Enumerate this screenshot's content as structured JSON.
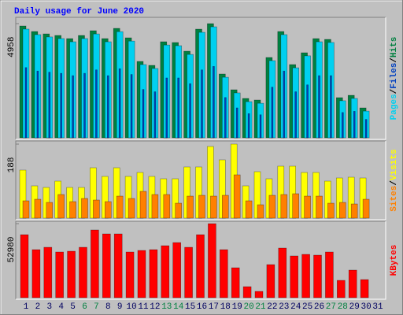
{
  "chart_data": [
    {
      "type": "bar",
      "title": "Daily usage for June 2020",
      "legend_separator": "/",
      "ylim": [
        0,
        4958
      ],
      "yticks": [
        4958
      ],
      "series": [
        {
          "name": "Hits",
          "color": "#008040",
          "values": [
            4855,
            4616,
            4513,
            4445,
            4308,
            4445,
            4650,
            4308,
            4753,
            4342,
            3317,
            3146,
            4171,
            4137,
            3761,
            4718,
            4958,
            2770,
            2086,
            1710,
            1641,
            3488,
            4616,
            3180,
            3693,
            4308,
            4274,
            1744,
            1846,
            1299,
            null
          ]
        },
        {
          "name": "Files",
          "color": "#0040c0",
          "values": [
            3050,
            2900,
            2850,
            2800,
            2700,
            2800,
            2950,
            2700,
            3000,
            2750,
            2100,
            2000,
            2600,
            2600,
            2350,
            2950,
            3100,
            1750,
            1300,
            1050,
            1000,
            2200,
            2900,
            2000,
            2300,
            2700,
            2700,
            1100,
            1150,
            800,
            null
          ]
        },
        {
          "name": "Pages",
          "color": "#00d0f0",
          "values": [
            4720,
            4480,
            4380,
            4310,
            4170,
            4310,
            4510,
            4170,
            4610,
            4200,
            3180,
            3010,
            4030,
            4000,
            3620,
            4580,
            4820,
            2630,
            1950,
            1570,
            1500,
            3350,
            4480,
            3040,
            3560,
            4170,
            4140,
            1610,
            1710,
            1160,
            null
          ]
        }
      ]
    },
    {
      "type": "bar",
      "legend_separator": "/",
      "ylim": [
        0,
        188
      ],
      "yticks": [
        188
      ],
      "series": [
        {
          "name": "Visits",
          "color": "#ffff00",
          "values": [
            122,
            82,
            78,
            94,
            78,
            78,
            128,
            106,
            128,
            106,
            116,
            106,
            100,
            100,
            130,
            130,
            182,
            148,
            188,
            82,
            118,
            100,
            132,
            132,
            116,
            116,
            94,
            102,
            104,
            102,
            null
          ]
        },
        {
          "name": "Sites",
          "color": "#ff8000",
          "values": [
            44,
            48,
            40,
            60,
            42,
            50,
            46,
            42,
            56,
            50,
            68,
            60,
            60,
            38,
            56,
            58,
            56,
            58,
            110,
            44,
            34,
            58,
            60,
            62,
            56,
            56,
            38,
            40,
            36,
            48,
            null
          ]
        }
      ]
    },
    {
      "type": "bar",
      "ylim": [
        0,
        52980
      ],
      "yticks": [
        52980
      ],
      "categories": [
        1,
        2,
        3,
        4,
        5,
        6,
        7,
        8,
        9,
        10,
        11,
        12,
        13,
        14,
        15,
        16,
        17,
        18,
        19,
        20,
        21,
        22,
        23,
        24,
        25,
        26,
        27,
        28,
        29,
        30,
        31
      ],
      "highlight_categories": [
        6,
        7,
        13,
        14,
        20,
        21,
        27,
        28
      ],
      "highlight_color": "#008040",
      "category_color": "#000060",
      "series": [
        {
          "name": "KBytes",
          "color": "#ff0000",
          "values": [
            45089,
            34381,
            36071,
            32690,
            33253,
            36071,
            48470,
            45652,
            45652,
            32690,
            33817,
            34381,
            37198,
            39453,
            36071,
            45089,
            52980,
            34381,
            21417,
            7890,
            4509,
            23672,
            35507,
            29871,
            30999,
            30435,
            32690,
            12399,
            19726,
            12963,
            null
          ]
        }
      ]
    }
  ]
}
